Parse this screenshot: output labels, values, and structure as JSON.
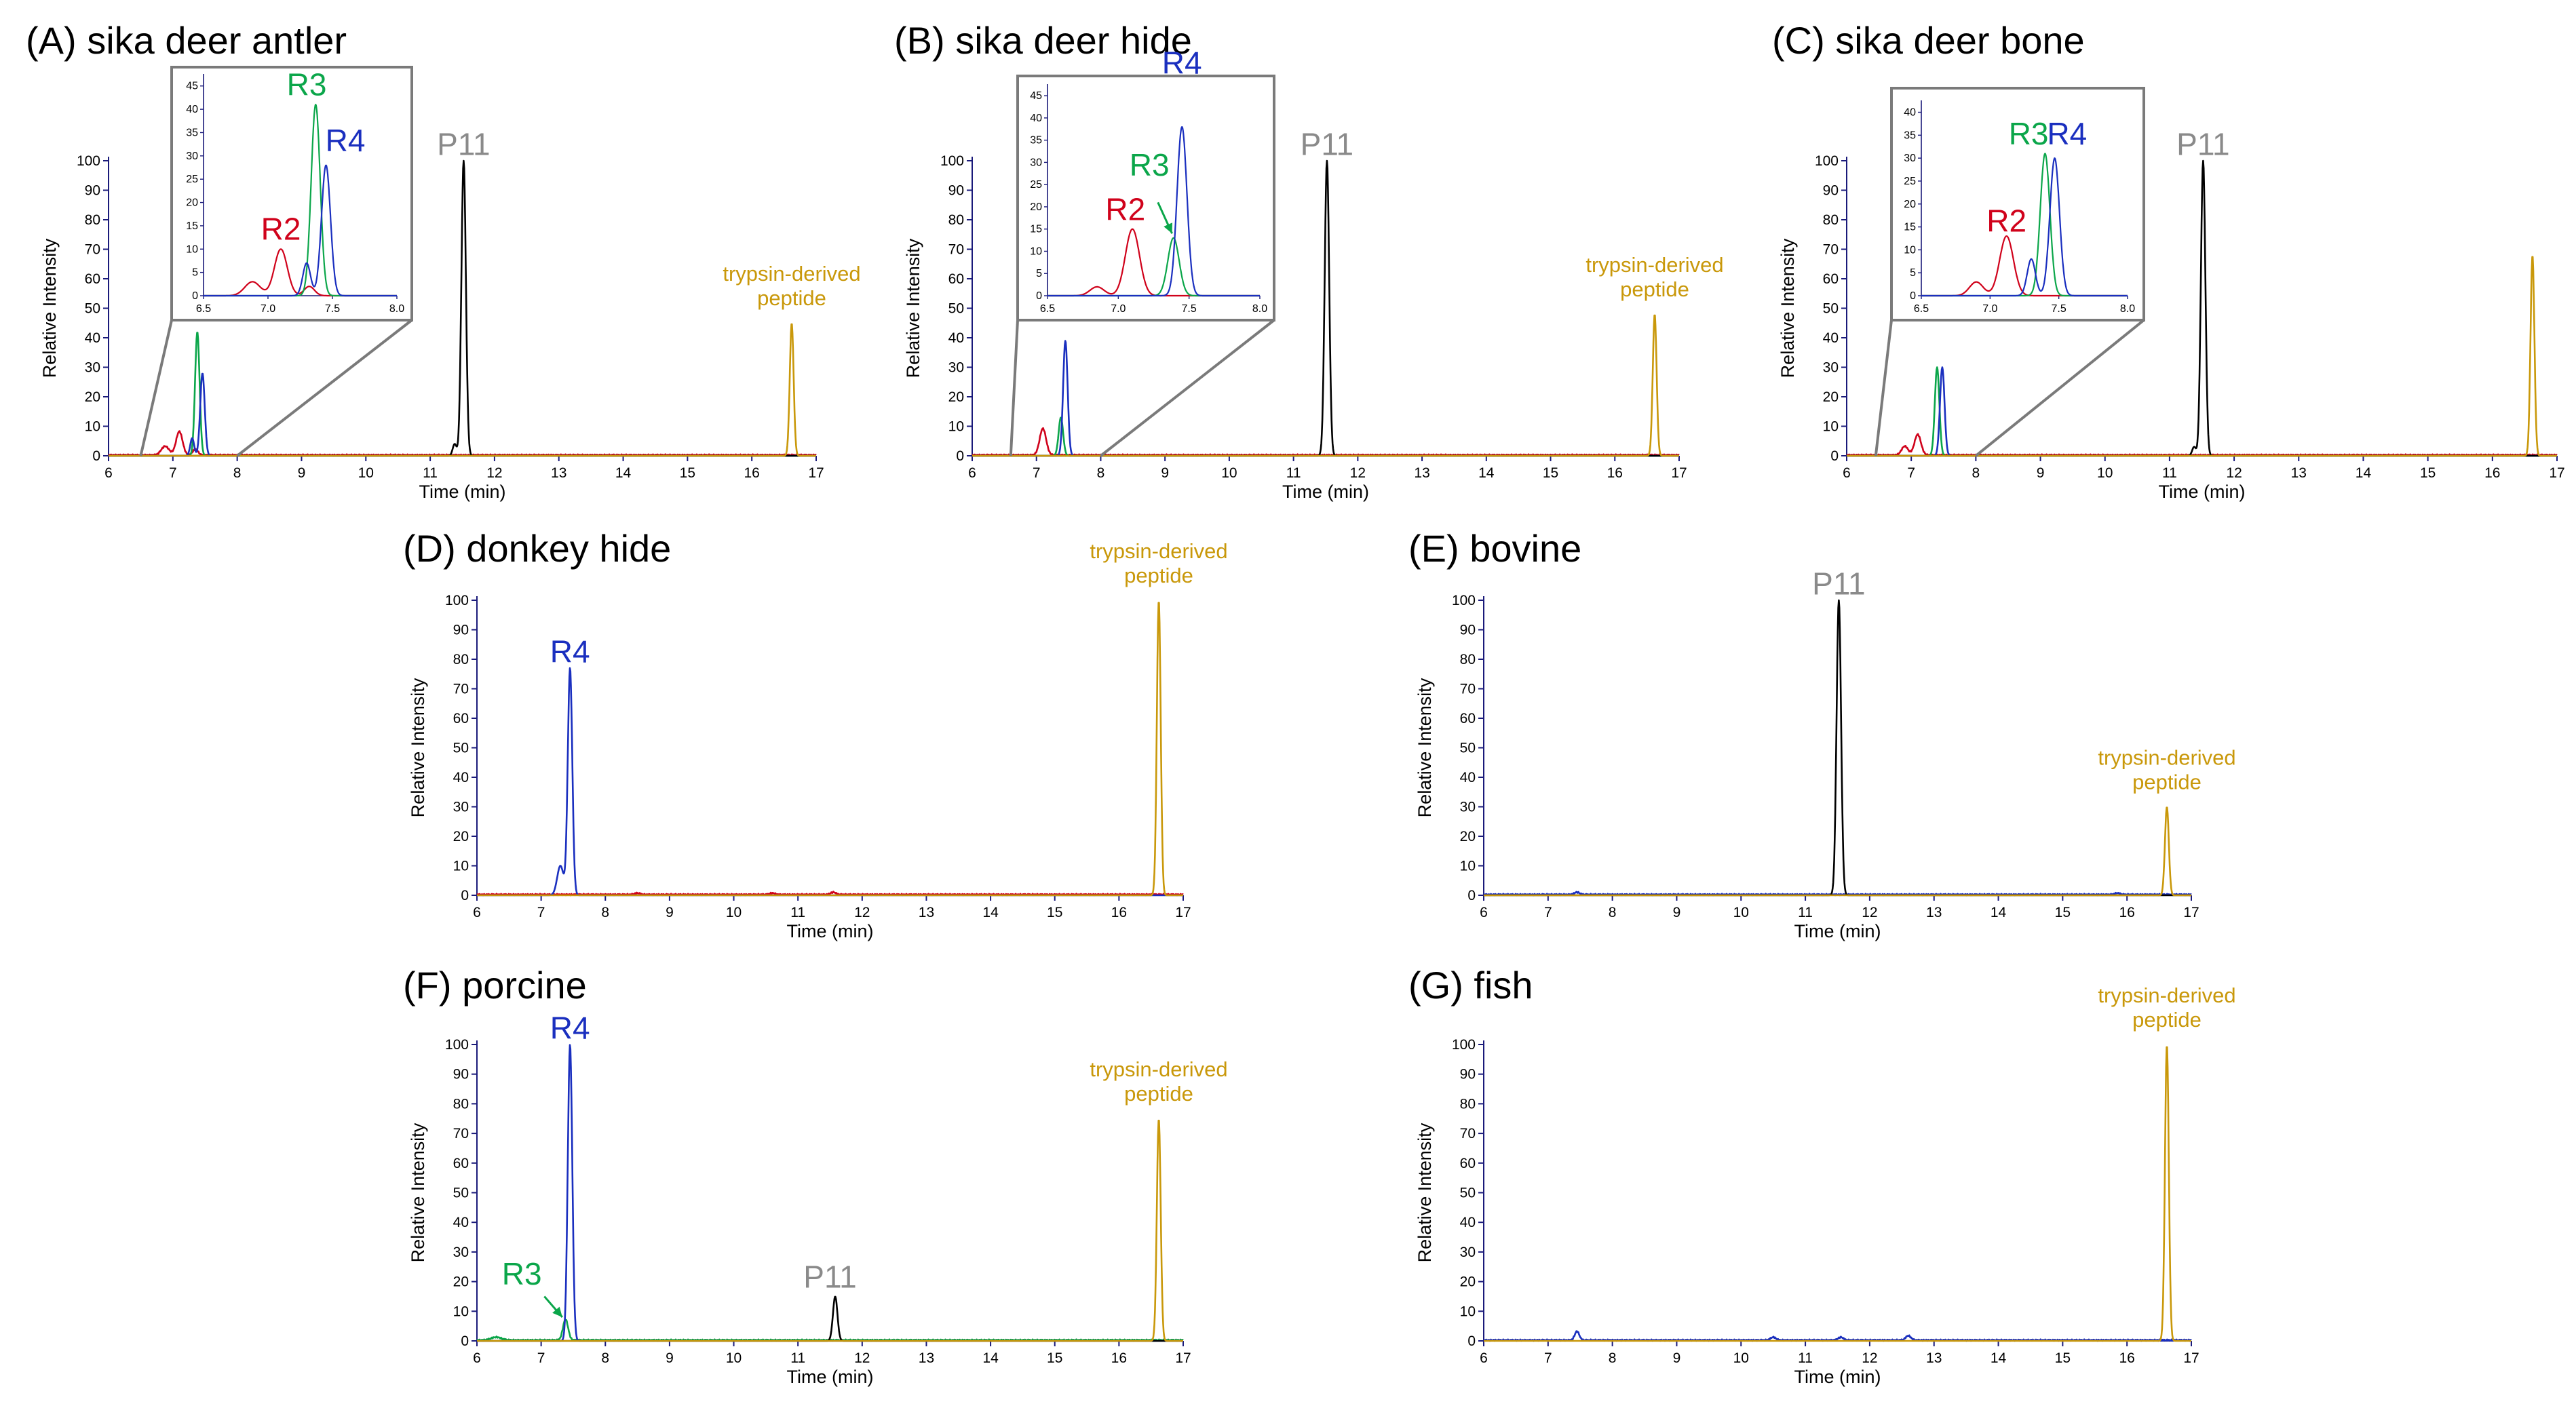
{
  "colors": {
    "R2": "#d0021b",
    "R3": "#0ba64a",
    "R4": "#1a2fbf",
    "P11": "#000000",
    "P11_label": "#8a8a8a",
    "trypsin": "#c9980a",
    "axis": "#1a1a7a",
    "inset_border": "#7a7a7a"
  },
  "chart_data": [
    {
      "id": "A",
      "type": "line",
      "title": "(A) sika deer antler",
      "xlabel": "Time (min)",
      "ylabel": "Relative Intensity",
      "xlim": [
        6,
        17
      ],
      "ylim": [
        0,
        100
      ],
      "xticks": [
        6,
        7,
        8,
        9,
        10,
        11,
        12,
        13,
        14,
        15,
        16,
        17
      ],
      "yticks": [
        0,
        10,
        20,
        30,
        40,
        50,
        60,
        70,
        80,
        90,
        100
      ],
      "series": [
        {
          "name": "R2",
          "color": "R2",
          "peaks": [
            {
              "t": 6.88,
              "h": 3,
              "w": 0.06
            },
            {
              "t": 7.1,
              "h": 8,
              "w": 0.05
            },
            {
              "t": 7.35,
              "h": 2,
              "w": 0.04
            }
          ]
        },
        {
          "name": "R3",
          "color": "R3",
          "peaks": [
            {
              "t": 7.38,
              "h": 42,
              "w": 0.035
            }
          ]
        },
        {
          "name": "R4",
          "color": "R4",
          "peaks": [
            {
              "t": 7.3,
              "h": 6,
              "w": 0.03
            },
            {
              "t": 7.46,
              "h": 28,
              "w": 0.035
            }
          ]
        },
        {
          "name": "P11",
          "color": "P11",
          "peaks": [
            {
              "t": 11.38,
              "h": 4,
              "w": 0.03
            },
            {
              "t": 11.52,
              "h": 100,
              "w": 0.035
            }
          ]
        },
        {
          "name": "trypsin-derived peptide",
          "color": "trypsin",
          "peaks": [
            {
              "t": 16.62,
              "h": 45,
              "w": 0.03
            }
          ]
        }
      ],
      "labels": [
        {
          "text": "P11",
          "t": 11.52,
          "y": 102,
          "color": "P11_label"
        },
        {
          "text": "trypsin-derived\npeptide",
          "t": 16.62,
          "y": 51,
          "color": "trypsin"
        }
      ],
      "inset": {
        "xlim": [
          6.5,
          8.0
        ],
        "ylim": [
          0,
          47
        ],
        "xticks": [
          6.5,
          7.0,
          7.5,
          8.0
        ],
        "xtick_labels": [
          "6.5",
          "7.0",
          "7.5",
          "8.0"
        ],
        "yticks": [
          0,
          5,
          10,
          15,
          20,
          25,
          30,
          35,
          40,
          45
        ],
        "series": [
          {
            "color": "R2",
            "peaks": [
              {
                "t": 6.88,
                "h": 3,
                "w": 0.06
              },
              {
                "t": 7.1,
                "h": 10,
                "w": 0.05
              },
              {
                "t": 7.32,
                "h": 2,
                "w": 0.04
              }
            ]
          },
          {
            "color": "R3",
            "peaks": [
              {
                "t": 7.37,
                "h": 41,
                "w": 0.035
              }
            ]
          },
          {
            "color": "R4",
            "peaks": [
              {
                "t": 7.3,
                "h": 7,
                "w": 0.03
              },
              {
                "t": 7.45,
                "h": 28,
                "w": 0.035
              }
            ]
          }
        ],
        "labels": [
          {
            "text": "R2",
            "t": 7.1,
            "y": 12,
            "color": "R2"
          },
          {
            "text": "R3",
            "t": 7.3,
            "y": 43,
            "color": "R3"
          },
          {
            "text": "R4",
            "t": 7.6,
            "y": 31,
            "color": "R4"
          }
        ]
      }
    },
    {
      "id": "B",
      "type": "line",
      "title": "(B) sika deer hide",
      "xlabel": "Time (min)",
      "ylabel": "Relative Intensity",
      "xlim": [
        6,
        17
      ],
      "ylim": [
        0,
        100
      ],
      "xticks": [
        6,
        7,
        8,
        9,
        10,
        11,
        12,
        13,
        14,
        15,
        16,
        17
      ],
      "yticks": [
        0,
        10,
        20,
        30,
        40,
        50,
        60,
        70,
        80,
        90,
        100
      ],
      "series": [
        {
          "name": "R2",
          "color": "R2",
          "peaks": [
            {
              "t": 7.1,
              "h": 9,
              "w": 0.05
            }
          ]
        },
        {
          "name": "R3",
          "color": "R3",
          "peaks": [
            {
              "t": 7.38,
              "h": 13,
              "w": 0.035
            }
          ]
        },
        {
          "name": "R4",
          "color": "R4",
          "peaks": [
            {
              "t": 7.45,
              "h": 39,
              "w": 0.035
            }
          ]
        },
        {
          "name": "P11",
          "color": "P11",
          "peaks": [
            {
              "t": 11.52,
              "h": 100,
              "w": 0.035
            }
          ]
        },
        {
          "name": "trypsin-derived peptide",
          "color": "trypsin",
          "peaks": [
            {
              "t": 16.62,
              "h": 48,
              "w": 0.03
            }
          ]
        }
      ],
      "labels": [
        {
          "text": "P11",
          "t": 11.52,
          "y": 102,
          "color": "P11_label"
        },
        {
          "text": "trypsin-derived\npeptide",
          "t": 16.62,
          "y": 54,
          "color": "trypsin"
        }
      ],
      "inset": {
        "xlim": [
          6.5,
          8.0
        ],
        "ylim": [
          0,
          47
        ],
        "xticks": [
          6.5,
          7.0,
          7.5,
          8.0
        ],
        "xtick_labels": [
          "6.5",
          "7.0",
          "7.5",
          "8.0"
        ],
        "yticks": [
          0,
          5,
          10,
          15,
          20,
          25,
          30,
          35,
          40,
          45
        ],
        "series": [
          {
            "color": "R2",
            "peaks": [
              {
                "t": 6.85,
                "h": 2,
                "w": 0.05
              },
              {
                "t": 7.1,
                "h": 15,
                "w": 0.05
              }
            ]
          },
          {
            "color": "R3",
            "peaks": [
              {
                "t": 7.39,
                "h": 13,
                "w": 0.04
              }
            ]
          },
          {
            "color": "R4",
            "peaks": [
              {
                "t": 7.45,
                "h": 38,
                "w": 0.035
              }
            ]
          }
        ],
        "labels": [
          {
            "text": "R2",
            "t": 7.05,
            "y": 17,
            "color": "R2"
          },
          {
            "text": "R3",
            "t": 7.22,
            "y": 27,
            "color": "R3"
          },
          {
            "text": "R4",
            "t": 7.45,
            "y": 50,
            "color": "R4"
          }
        ],
        "arrow": {
          "color": "R3",
          "from_t": 7.28,
          "from_y": 21,
          "to_t": 7.38,
          "to_y": 14
        }
      }
    },
    {
      "id": "C",
      "type": "line",
      "title": "(C) sika deer bone",
      "xlabel": "Time (min)",
      "ylabel": "Relative Intensity",
      "xlim": [
        6,
        17
      ],
      "ylim": [
        0,
        100
      ],
      "xticks": [
        6,
        7,
        8,
        9,
        10,
        11,
        12,
        13,
        14,
        15,
        16,
        17
      ],
      "yticks": [
        0,
        10,
        20,
        30,
        40,
        50,
        60,
        70,
        80,
        90,
        100
      ],
      "series": [
        {
          "name": "R2",
          "color": "R2",
          "peaks": [
            {
              "t": 6.9,
              "h": 3,
              "w": 0.05
            },
            {
              "t": 7.1,
              "h": 7,
              "w": 0.05
            }
          ]
        },
        {
          "name": "R3",
          "color": "R3",
          "peaks": [
            {
              "t": 7.4,
              "h": 30,
              "w": 0.035
            }
          ]
        },
        {
          "name": "R4",
          "color": "R4",
          "peaks": [
            {
              "t": 7.48,
              "h": 30,
              "w": 0.035
            }
          ]
        },
        {
          "name": "P11",
          "color": "P11",
          "peaks": [
            {
              "t": 11.38,
              "h": 3,
              "w": 0.03
            },
            {
              "t": 11.52,
              "h": 100,
              "w": 0.035
            }
          ]
        },
        {
          "name": "trypsin-derived peptide",
          "color": "trypsin",
          "peaks": [
            {
              "t": 16.62,
              "h": 68,
              "w": 0.03
            }
          ]
        }
      ],
      "labels": [
        {
          "text": "P11",
          "t": 11.52,
          "y": 102,
          "color": "P11_label"
        }
      ],
      "inset": {
        "xlim": [
          6.5,
          8.0
        ],
        "ylim": [
          0,
          42
        ],
        "xticks": [
          6.5,
          7.0,
          7.5,
          8.0
        ],
        "xtick_labels": [
          "6.5",
          "7.0",
          "7.5",
          "8.0"
        ],
        "yticks": [
          0,
          5,
          10,
          15,
          20,
          25,
          30,
          35,
          40
        ],
        "series": [
          {
            "color": "R2",
            "peaks": [
              {
                "t": 6.9,
                "h": 3,
                "w": 0.05
              },
              {
                "t": 7.12,
                "h": 13,
                "w": 0.05
              }
            ]
          },
          {
            "color": "R3",
            "peaks": [
              {
                "t": 7.4,
                "h": 31,
                "w": 0.035
              }
            ]
          },
          {
            "color": "R4",
            "peaks": [
              {
                "t": 7.3,
                "h": 8,
                "w": 0.03
              },
              {
                "t": 7.47,
                "h": 30,
                "w": 0.035
              }
            ]
          }
        ],
        "labels": [
          {
            "text": "R2",
            "t": 7.12,
            "y": 14,
            "color": "R2"
          },
          {
            "text": "R3",
            "t": 7.28,
            "y": 33,
            "color": "R3"
          },
          {
            "text": "R4",
            "t": 7.56,
            "y": 33,
            "color": "R4"
          }
        ]
      }
    },
    {
      "id": "D",
      "type": "line",
      "title": "(D) donkey hide",
      "xlabel": "Time (min)",
      "ylabel": "Relative Intensity",
      "xlim": [
        6,
        17
      ],
      "ylim": [
        0,
        100
      ],
      "xticks": [
        6,
        7,
        8,
        9,
        10,
        11,
        12,
        13,
        14,
        15,
        16,
        17
      ],
      "yticks": [
        0,
        10,
        20,
        30,
        40,
        50,
        60,
        70,
        80,
        90,
        100
      ],
      "series": [
        {
          "name": "R2",
          "color": "R2",
          "peaks": [
            {
              "t": 8.5,
              "h": 0.5,
              "w": 0.04
            },
            {
              "t": 10.6,
              "h": 0.5,
              "w": 0.04
            },
            {
              "t": 11.55,
              "h": 0.8,
              "w": 0.04
            }
          ]
        },
        {
          "name": "R4",
          "color": "R4",
          "peaks": [
            {
              "t": 7.3,
              "h": 10,
              "w": 0.05
            },
            {
              "t": 7.45,
              "h": 77,
              "w": 0.035
            }
          ]
        },
        {
          "name": "trypsin-derived peptide",
          "color": "trypsin",
          "peaks": [
            {
              "t": 16.62,
              "h": 100,
              "w": 0.03
            }
          ]
        }
      ],
      "labels": [
        {
          "text": "R4",
          "t": 7.45,
          "y": 79,
          "color": "R4"
        },
        {
          "text": "trypsin-derived\npeptide",
          "t": 16.62,
          "y": 106,
          "color": "trypsin"
        }
      ]
    },
    {
      "id": "E",
      "type": "line",
      "title": "(E) bovine",
      "xlabel": "Time (min)",
      "ylabel": "Relative Intensity",
      "xlim": [
        6,
        17
      ],
      "ylim": [
        0,
        100
      ],
      "xticks": [
        6,
        7,
        8,
        9,
        10,
        11,
        12,
        13,
        14,
        15,
        16,
        17
      ],
      "yticks": [
        0,
        10,
        20,
        30,
        40,
        50,
        60,
        70,
        80,
        90,
        100
      ],
      "series": [
        {
          "name": "R4",
          "color": "R4",
          "peaks": [
            {
              "t": 7.45,
              "h": 0.8,
              "w": 0.04
            },
            {
              "t": 15.85,
              "h": 0.5,
              "w": 0.04
            }
          ]
        },
        {
          "name": "P11",
          "color": "P11",
          "peaks": [
            {
              "t": 11.52,
              "h": 100,
              "w": 0.035
            }
          ]
        },
        {
          "name": "trypsin-derived peptide",
          "color": "trypsin",
          "peaks": [
            {
              "t": 16.62,
              "h": 30,
              "w": 0.03
            }
          ]
        }
      ],
      "labels": [
        {
          "text": "P11",
          "t": 11.52,
          "y": 102,
          "color": "P11_label"
        },
        {
          "text": "trypsin-derived\npeptide",
          "t": 16.62,
          "y": 36,
          "color": "trypsin"
        }
      ]
    },
    {
      "id": "F",
      "type": "line",
      "title": "(F) porcine",
      "xlabel": "Time (min)",
      "ylabel": "Relative Intensity",
      "xlim": [
        6,
        17
      ],
      "ylim": [
        0,
        100
      ],
      "xticks": [
        6,
        7,
        8,
        9,
        10,
        11,
        12,
        13,
        14,
        15,
        16,
        17
      ],
      "yticks": [
        0,
        10,
        20,
        30,
        40,
        50,
        60,
        70,
        80,
        90,
        100
      ],
      "series": [
        {
          "name": "R3",
          "color": "R3",
          "peaks": [
            {
              "t": 6.3,
              "h": 1,
              "w": 0.08
            },
            {
              "t": 7.38,
              "h": 7,
              "w": 0.04
            }
          ]
        },
        {
          "name": "R4",
          "color": "R4",
          "peaks": [
            {
              "t": 7.45,
              "h": 100,
              "w": 0.035
            }
          ]
        },
        {
          "name": "P11",
          "color": "P11",
          "peaks": [
            {
              "t": 11.58,
              "h": 15,
              "w": 0.035
            }
          ]
        },
        {
          "name": "trypsin-derived peptide",
          "color": "trypsin",
          "peaks": [
            {
              "t": 16.62,
              "h": 75,
              "w": 0.03
            }
          ]
        }
      ],
      "labels": [
        {
          "text": "R4",
          "t": 7.45,
          "y": 102,
          "color": "R4"
        },
        {
          "text": "R3",
          "t": 6.7,
          "y": 19,
          "color": "R3"
        },
        {
          "text": "P11",
          "t": 11.5,
          "y": 18,
          "color": "P11_label"
        },
        {
          "text": "trypsin-derived\npeptide",
          "t": 16.62,
          "y": 81,
          "color": "trypsin"
        }
      ],
      "arrow": {
        "color": "R3",
        "from_t": 7.05,
        "from_y": 15,
        "to_t": 7.33,
        "to_y": 8
      }
    },
    {
      "id": "G",
      "type": "line",
      "title": "(G) fish",
      "xlabel": "Time (min)",
      "ylabel": "Relative Intensity",
      "xlim": [
        6,
        17
      ],
      "ylim": [
        0,
        100
      ],
      "xticks": [
        6,
        7,
        8,
        9,
        10,
        11,
        12,
        13,
        14,
        15,
        16,
        17
      ],
      "yticks": [
        0,
        10,
        20,
        30,
        40,
        50,
        60,
        70,
        80,
        90,
        100
      ],
      "series": [
        {
          "name": "R4",
          "color": "R4",
          "peaks": [
            {
              "t": 7.45,
              "h": 3,
              "w": 0.035
            },
            {
              "t": 10.5,
              "h": 1,
              "w": 0.04
            },
            {
              "t": 11.55,
              "h": 1,
              "w": 0.04
            },
            {
              "t": 12.6,
              "h": 1.5,
              "w": 0.04
            }
          ]
        },
        {
          "name": "trypsin-derived peptide",
          "color": "trypsin",
          "peaks": [
            {
              "t": 16.62,
              "h": 100,
              "w": 0.03
            }
          ]
        }
      ],
      "labels": [
        {
          "text": "trypsin-derived\npeptide",
          "t": 16.62,
          "y": 106,
          "color": "trypsin"
        }
      ]
    }
  ]
}
